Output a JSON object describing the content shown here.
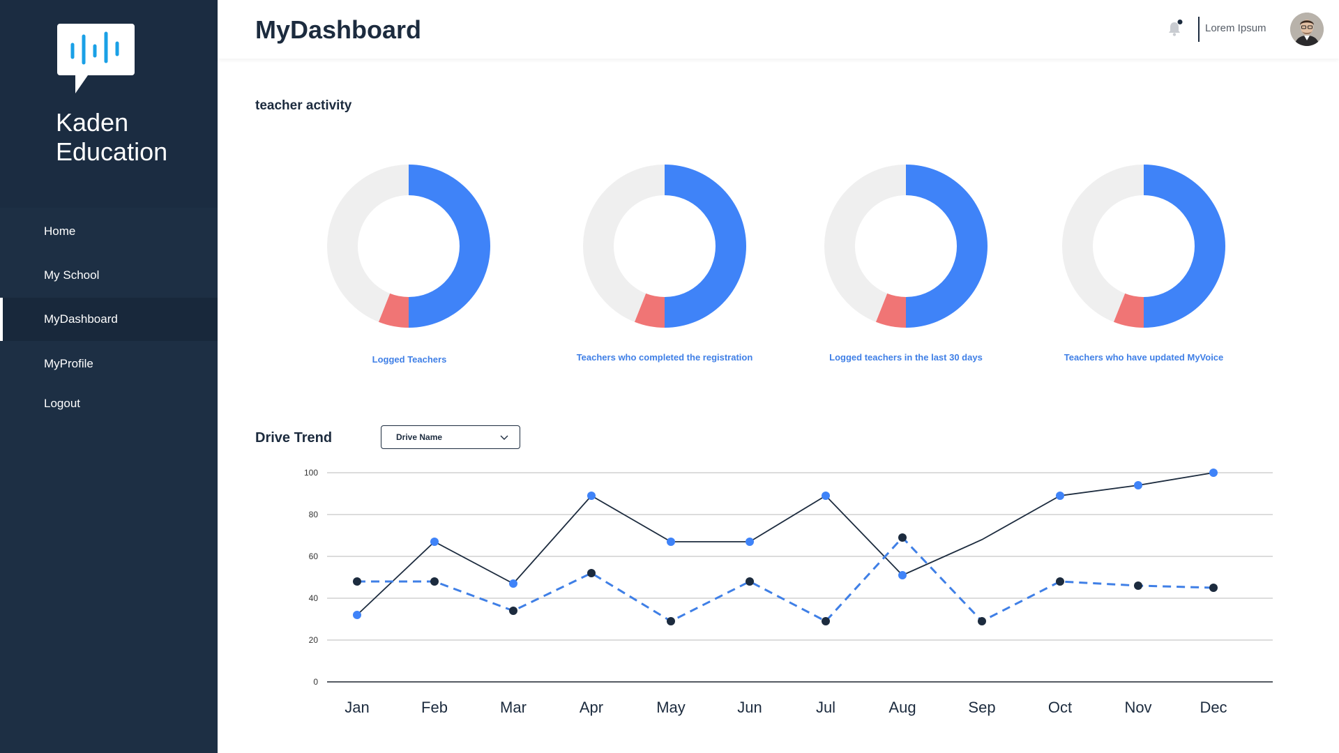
{
  "brand": {
    "name_line1": "Kaden",
    "name_line2": "Education"
  },
  "sidebar": {
    "items": [
      {
        "label": "Home",
        "active": false
      },
      {
        "label": "My School",
        "active": false
      },
      {
        "label": "MyDashboard",
        "active": true
      },
      {
        "label": "MyProfile",
        "active": false
      },
      {
        "label": "Logout",
        "active": false
      }
    ]
  },
  "header": {
    "title": "MyDashboard",
    "user_name": "Lorem Ipsum",
    "notification_dot": true
  },
  "teacher_activity": {
    "title": "teacher activity",
    "donuts": [
      {
        "label": "Logged Teachers",
        "blue": 0.5,
        "red": 0.06,
        "gray": 0.44
      },
      {
        "label": "Teachers who completed the registration",
        "blue": 0.5,
        "red": 0.06,
        "gray": 0.44
      },
      {
        "label": "Logged teachers in the last 30 days",
        "blue": 0.5,
        "red": 0.06,
        "gray": 0.44
      },
      {
        "label": "Teachers who have updated MyVoice",
        "blue": 0.5,
        "red": 0.06,
        "gray": 0.44
      }
    ]
  },
  "drive_trend": {
    "title": "Drive Trend",
    "dropdown": {
      "selected": "Drive Name"
    }
  },
  "colors": {
    "sidebar": "#1d2f44",
    "accent_blue": "#3f83f8",
    "accent_red": "#f07575",
    "gray": "#efefef",
    "navy": "#1c2b3e"
  },
  "chart_data": {
    "type": "line",
    "categories": [
      "Jan",
      "Feb",
      "Mar",
      "Apr",
      "May",
      "Jun",
      "Jul",
      "Aug",
      "Sep",
      "Oct",
      "Nov",
      "Dec"
    ],
    "ylim": [
      0,
      100
    ],
    "yticks": [
      0,
      20,
      40,
      60,
      80,
      100
    ],
    "grid": true,
    "series": [
      {
        "values": [
          32,
          67,
          47,
          89,
          67,
          67,
          89,
          51,
          68,
          89,
          94,
          100
        ],
        "style": "solid",
        "line_color": "#1c2b3e",
        "marker_color": "#3f83f8"
      },
      {
        "values": [
          48,
          48,
          34,
          52,
          29,
          48,
          29,
          69,
          29,
          48,
          46,
          45
        ],
        "style": "dashed",
        "line_color": "#3f7fe6",
        "marker_color": "#1c2b3e"
      }
    ]
  }
}
